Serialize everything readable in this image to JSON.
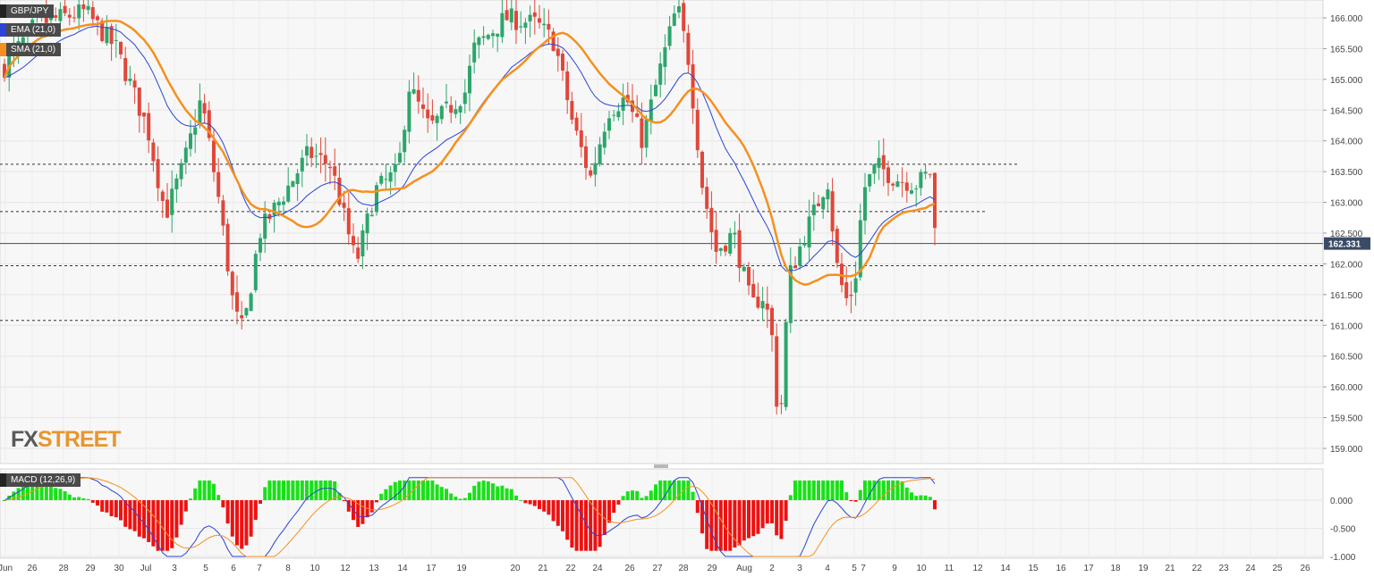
{
  "legend": {
    "symbol": "GBP/JPY",
    "ema_label": "EMA (21,0)",
    "sma_label": "SMA (21,0)",
    "macd_label": "MACD (12,26,9)"
  },
  "colors": {
    "up": "#2ca66b",
    "down": "#e0473a",
    "ema": "#2b43d6",
    "sma": "#f5901e",
    "macd_line": "#2b43d6",
    "signal_line": "#f5901e",
    "hist_pos": "#19e019",
    "hist_neg": "#ee1111",
    "price_tag": "#3a4b66"
  },
  "watermark": {
    "fx": "FX",
    "street": "STREET"
  },
  "chart_data": [
    {
      "type": "candlestick",
      "title": "GBP/JPY",
      "xlabel": "",
      "ylabel": "",
      "ylim": [
        158.8,
        166.25
      ],
      "y_ticks": [
        "166.000",
        "165.500",
        "165.000",
        "164.500",
        "164.000",
        "163.500",
        "163.000",
        "162.500",
        "162.000",
        "161.500",
        "161.000",
        "160.500",
        "160.000",
        "159.500",
        "159.000"
      ],
      "x_ticks": [
        "Jun",
        "26",
        "28",
        "29",
        "30",
        "Jul",
        "3",
        "5",
        "6",
        "7",
        "8",
        "10",
        "12",
        "13",
        "14",
        "17",
        "19",
        "20",
        "21",
        "22",
        "24",
        "26",
        "27",
        "28",
        "29",
        "Aug",
        "2",
        "3",
        "4",
        "5",
        "7",
        "9",
        "10",
        "11",
        "12",
        "14",
        "15",
        "16",
        "17",
        "18",
        "19",
        "21",
        "22",
        "23",
        "24",
        "25",
        "26"
      ],
      "current_price": "162.331",
      "horizontal_levels": [
        163.62,
        162.85,
        161.97,
        161.08
      ],
      "grid": true,
      "series": [
        {
          "name": "EMA (21,0)",
          "kind": "line"
        },
        {
          "name": "SMA (21,0)",
          "kind": "line"
        }
      ]
    },
    {
      "type": "bar",
      "title": "MACD (12,26,9)",
      "ylim": [
        -1.0,
        0.4
      ],
      "y_ticks": [
        "0.000",
        "-0.500",
        "-1.000"
      ]
    }
  ]
}
